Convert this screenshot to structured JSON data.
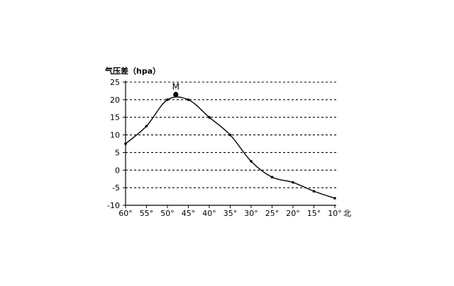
{
  "chart_data": {
    "type": "line",
    "ylabel": "气压差（hpa）",
    "xlabel": "北",
    "x_ticks": [
      "60°",
      "55°",
      "50°",
      "45°",
      "40°",
      "35°",
      "30°",
      "25°",
      "20°",
      "15°",
      "10°"
    ],
    "x": [
      60,
      55,
      50,
      45,
      40,
      35,
      30,
      25,
      20,
      15,
      10
    ],
    "xlim": [
      60,
      10
    ],
    "y_ticks": [
      25,
      20,
      15,
      10,
      5,
      0,
      -5,
      -10
    ],
    "ylim": [
      -10,
      25
    ],
    "grid": "horizontal-dashed",
    "series": [
      {
        "values": [
          7.5,
          12.5,
          20,
          20,
          15,
          10,
          2.5,
          -2,
          -3.5,
          -6,
          -8
        ],
        "marker": "small-dot"
      }
    ],
    "annotations": [
      {
        "label": "M",
        "x": 48,
        "y": 21.5,
        "marker": "large-dot"
      }
    ],
    "colors": {
      "line": "#000000",
      "grid": "#000000",
      "background": "#ffffff"
    }
  }
}
